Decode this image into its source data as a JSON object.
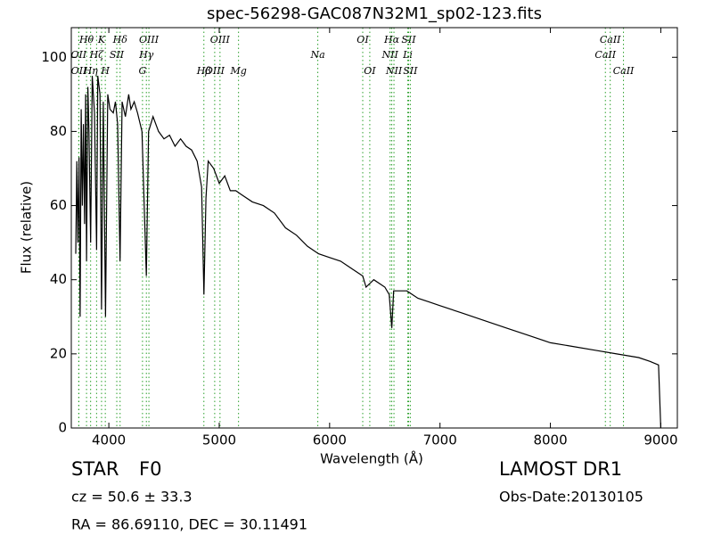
{
  "chart_data": {
    "type": "line",
    "title": "spec-56298-GAC087N32M1_sp02-123.fits",
    "x_label": "Wavelength (Å)",
    "y_label": "Flux (relative)",
    "xlim": [
      3660,
      9150
    ],
    "ylim": [
      0,
      108
    ],
    "xticks": [
      4000,
      5000,
      6000,
      7000,
      8000,
      9000
    ],
    "yticks": [
      0,
      20,
      40,
      60,
      80,
      100
    ],
    "series": [
      {
        "name": "Flux",
        "color": "#000000",
        "x": [
          3700,
          3710,
          3720,
          3730,
          3740,
          3750,
          3760,
          3770,
          3780,
          3790,
          3798,
          3810,
          3820,
          3835,
          3850,
          3870,
          3889,
          3900,
          3920,
          3934,
          3950,
          3970,
          3990,
          4010,
          4040,
          4060,
          4080,
          4102,
          4120,
          4150,
          4180,
          4200,
          4230,
          4260,
          4300,
          4340,
          4360,
          4400,
          4450,
          4500,
          4550,
          4600,
          4650,
          4700,
          4750,
          4800,
          4840,
          4861,
          4880,
          4900,
          4950,
          5000,
          5050,
          5100,
          5150,
          5200,
          5300,
          5400,
          5500,
          5600,
          5700,
          5800,
          5900,
          6000,
          6100,
          6200,
          6300,
          6330,
          6400,
          6500,
          6540,
          6563,
          6580,
          6700,
          6800,
          6900,
          7000,
          7200,
          7400,
          7600,
          7800,
          8000,
          8200,
          8400,
          8600,
          8800,
          8900,
          8980,
          9000
        ],
        "values": [
          47,
          72,
          50,
          73,
          30,
          86,
          60,
          82,
          55,
          90,
          45,
          92,
          80,
          50,
          95,
          85,
          48,
          95,
          90,
          32,
          88,
          30,
          90,
          86,
          85,
          88,
          82,
          45,
          88,
          84,
          90,
          86,
          88,
          85,
          80,
          41,
          80,
          84,
          80,
          78,
          79,
          76,
          78,
          76,
          75,
          72,
          65,
          36,
          62,
          72,
          70,
          66,
          68,
          64,
          64,
          63,
          61,
          60,
          58,
          54,
          52,
          49,
          47,
          46,
          45,
          43,
          41,
          38,
          40,
          38,
          36,
          27,
          37,
          37,
          35,
          34,
          33,
          31,
          29,
          27,
          25,
          23,
          22,
          21,
          20,
          19,
          18,
          17,
          0
        ]
      }
    ],
    "line_color": "#2ca02c",
    "lines": [
      {
        "label": "Hθ",
        "x": 3798,
        "row": 0
      },
      {
        "label": "K",
        "x": 3934,
        "row": 0
      },
      {
        "label": "Hδ",
        "x": 4102,
        "row": 0
      },
      {
        "label": "OIII",
        "x": 4363,
        "row": 0
      },
      {
        "label": "OIII",
        "x": 5007,
        "row": 0
      },
      {
        "label": "OI",
        "x": 6300,
        "row": 0
      },
      {
        "label": "Hα",
        "x": 6563,
        "row": 0
      },
      {
        "label": "SII",
        "x": 6716,
        "row": 0
      },
      {
        "label": "CaII",
        "x": 8542,
        "row": 0
      },
      {
        "label": "OII",
        "x": 3727,
        "row": 1
      },
      {
        "label": "Hζ",
        "x": 3889,
        "row": 1
      },
      {
        "label": "SII",
        "x": 4072,
        "row": 1
      },
      {
        "label": "Hγ",
        "x": 4340,
        "row": 1
      },
      {
        "label": "Na",
        "x": 5893,
        "row": 1
      },
      {
        "label": "NII",
        "x": 6548,
        "row": 1
      },
      {
        "label": "Li",
        "x": 6708,
        "row": 1
      },
      {
        "label": "CaII",
        "x": 8498,
        "row": 1
      },
      {
        "label": "OII",
        "x": 3729,
        "row": 2
      },
      {
        "label": "Hη",
        "x": 3835,
        "row": 2
      },
      {
        "label": "H",
        "x": 3968,
        "row": 2
      },
      {
        "label": "G",
        "x": 4305,
        "row": 2
      },
      {
        "label": "Hβ",
        "x": 4861,
        "row": 2
      },
      {
        "label": "OIII",
        "x": 4959,
        "row": 2
      },
      {
        "label": "Mg",
        "x": 5175,
        "row": 2
      },
      {
        "label": "OI",
        "x": 6364,
        "row": 2
      },
      {
        "label": "NII",
        "x": 6583,
        "row": 2
      },
      {
        "label": "SII",
        "x": 6731,
        "row": 2
      },
      {
        "label": "CaII",
        "x": 8662,
        "row": 2
      }
    ],
    "object_class": "STAR",
    "subclass": "F0",
    "cz": "cz = 50.6  ± 33.3",
    "coords": "RA = 86.69110, DEC = 30.11491",
    "survey": "LAMOST DR1",
    "obs_date": "Obs-Date:20130105"
  }
}
